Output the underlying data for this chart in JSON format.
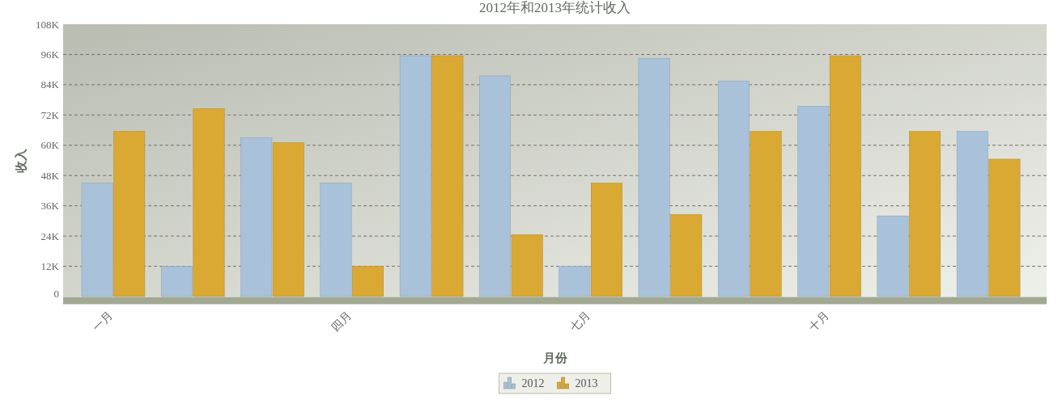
{
  "chart_data": {
    "type": "bar",
    "title": "2012年和2013年统计收入",
    "xlabel": "月份",
    "ylabel": "收入",
    "categories": [
      "一月",
      null,
      null,
      "四月",
      null,
      null,
      "七月",
      null,
      null,
      "十月",
      null,
      null
    ],
    "series": [
      {
        "name": "2012",
        "color": "#a9c2da",
        "values": [
          45000,
          12000,
          63000,
          45000,
          95500,
          87500,
          12000,
          94500,
          85500,
          75500,
          32000,
          65500
        ]
      },
      {
        "name": "2013",
        "color": "#d9a934",
        "values": [
          65500,
          74500,
          61000,
          12000,
          95500,
          24500,
          45000,
          32500,
          65500,
          95500,
          65500,
          54500
        ]
      }
    ],
    "ylim": [
      0,
      108000
    ],
    "yticks": [
      0,
      {
        "value": 12000,
        "label": "12K"
      },
      {
        "value": 24000,
        "label": "24K"
      },
      {
        "value": 36000,
        "label": "36K"
      },
      {
        "value": 48000,
        "label": "48K"
      },
      {
        "value": 60000,
        "label": "60K"
      },
      {
        "value": 72000,
        "label": "72K"
      },
      {
        "value": 84000,
        "label": "84K"
      },
      {
        "value": 96000,
        "label": "96K"
      },
      {
        "value": 108000,
        "label": "108K"
      }
    ],
    "grid": "y",
    "legend": "bottom"
  }
}
